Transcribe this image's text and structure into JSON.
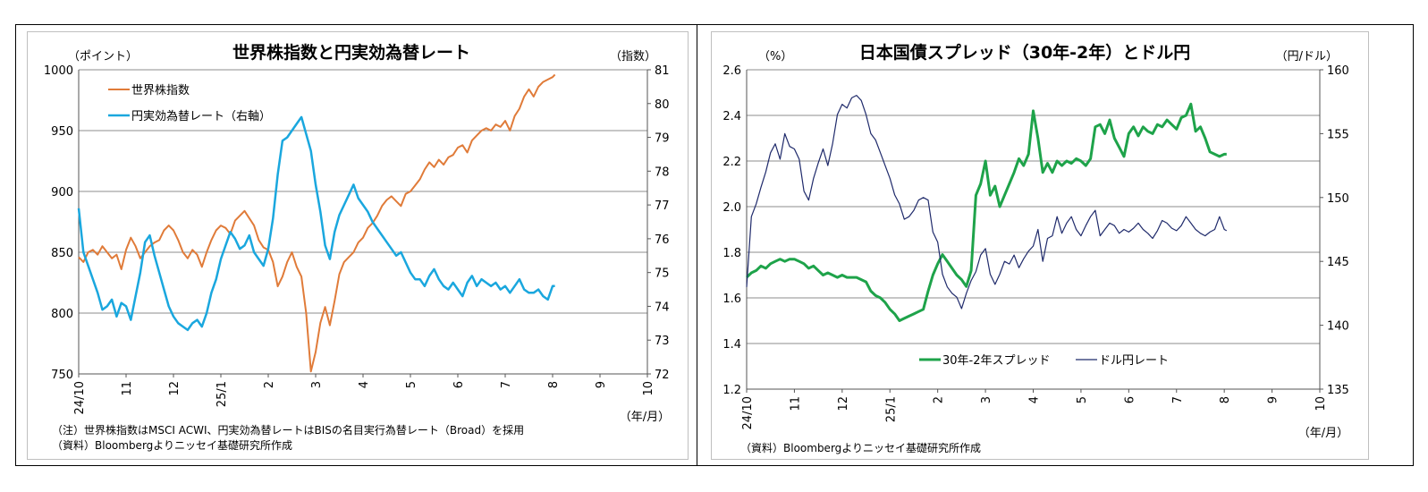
{
  "chart_data": [
    {
      "type": "line",
      "title": "世界株指数と円実効為替レート",
      "left_unit": "（ポイント）",
      "right_unit": "（指数）",
      "x_unit": "（年/月）",
      "x_ticks": [
        "24/10",
        "11",
        "12",
        "25/1",
        "2",
        "3",
        "4",
        "5",
        "6",
        "7",
        "8",
        "9",
        "10"
      ],
      "left_axis": {
        "min": 750,
        "max": 1000,
        "ticks": [
          "750",
          "800",
          "850",
          "900",
          "950",
          "1000"
        ]
      },
      "right_axis": {
        "min": 72,
        "max": 81,
        "ticks": [
          "72",
          "73",
          "74",
          "75",
          "76",
          "77",
          "78",
          "79",
          "80",
          "81"
        ]
      },
      "gridlines": true,
      "legend_position": "top-left",
      "colors": {
        "stock": "#E07B39",
        "yen": "#1AA7DE"
      },
      "series": [
        {
          "name": "世界株指数",
          "axis": "left",
          "x": [
            0,
            0.1,
            0.2,
            0.3,
            0.4,
            0.5,
            0.6,
            0.7,
            0.8,
            0.9,
            1.0,
            1.1,
            1.2,
            1.3,
            1.4,
            1.5,
            1.6,
            1.7,
            1.8,
            1.9,
            2.0,
            2.1,
            2.2,
            2.3,
            2.4,
            2.5,
            2.6,
            2.7,
            2.8,
            2.9,
            3.0,
            3.1,
            3.2,
            3.3,
            3.4,
            3.5,
            3.6,
            3.7,
            3.8,
            3.9,
            4.0,
            4.1,
            4.2,
            4.3,
            4.4,
            4.5,
            4.6,
            4.7,
            4.8,
            4.9,
            5.0,
            5.1,
            5.2,
            5.3,
            5.4,
            5.5,
            5.6,
            5.7,
            5.8,
            5.9,
            6.0,
            6.1,
            6.2,
            6.3,
            6.4,
            6.5,
            6.6,
            6.7,
            6.8,
            6.9,
            7.0,
            7.1,
            7.2,
            7.3,
            7.4,
            7.5,
            7.6,
            7.7,
            7.8,
            7.9,
            8.0,
            8.1,
            8.2,
            8.3,
            8.4,
            8.5,
            8.6,
            8.7,
            8.8,
            8.9,
            9.0,
            9.1,
            9.2,
            9.3,
            9.4,
            9.5,
            9.6,
            9.7,
            9.8,
            9.9,
            10.0,
            10.05
          ],
          "values": [
            846,
            842,
            850,
            852,
            848,
            855,
            850,
            845,
            848,
            836,
            852,
            862,
            855,
            845,
            850,
            855,
            858,
            860,
            868,
            872,
            868,
            860,
            850,
            845,
            852,
            848,
            838,
            850,
            860,
            868,
            872,
            870,
            865,
            876,
            880,
            884,
            878,
            872,
            860,
            854,
            852,
            842,
            822,
            830,
            842,
            850,
            838,
            830,
            800,
            752,
            768,
            792,
            805,
            790,
            810,
            832,
            842,
            846,
            850,
            858,
            862,
            870,
            874,
            880,
            888,
            893,
            896,
            892,
            888,
            898,
            900,
            905,
            910,
            918,
            924,
            920,
            926,
            922,
            928,
            930,
            936,
            938,
            932,
            942,
            946,
            950,
            952,
            950,
            955,
            953,
            958,
            950,
            962,
            968,
            978,
            984,
            978,
            986,
            990,
            992,
            994,
            996
          ]
        },
        {
          "name": "円実効為替レート（右軸）",
          "axis": "right",
          "x": [
            0,
            0.1,
            0.2,
            0.3,
            0.4,
            0.5,
            0.6,
            0.7,
            0.8,
            0.9,
            1.0,
            1.1,
            1.2,
            1.3,
            1.4,
            1.5,
            1.6,
            1.7,
            1.8,
            1.9,
            2.0,
            2.1,
            2.2,
            2.3,
            2.4,
            2.5,
            2.6,
            2.7,
            2.8,
            2.9,
            3.0,
            3.1,
            3.2,
            3.3,
            3.4,
            3.5,
            3.6,
            3.7,
            3.8,
            3.9,
            4.0,
            4.1,
            4.2,
            4.3,
            4.4,
            4.5,
            4.6,
            4.7,
            4.8,
            4.9,
            5.0,
            5.1,
            5.2,
            5.3,
            5.4,
            5.5,
            5.6,
            5.7,
            5.8,
            5.9,
            6.0,
            6.1,
            6.2,
            6.3,
            6.4,
            6.5,
            6.6,
            6.7,
            6.8,
            6.9,
            7.0,
            7.1,
            7.2,
            7.3,
            7.4,
            7.5,
            7.6,
            7.7,
            7.8,
            7.9,
            8.0,
            8.1,
            8.2,
            8.3,
            8.4,
            8.5,
            8.6,
            8.7,
            8.8,
            8.9,
            9.0,
            9.1,
            9.2,
            9.3,
            9.4,
            9.5,
            9.6,
            9.7,
            9.8,
            9.9,
            10.0,
            10.05
          ],
          "values": [
            76.9,
            75.6,
            75.2,
            74.8,
            74.4,
            73.9,
            74.0,
            74.2,
            73.7,
            74.1,
            74.0,
            73.6,
            74.3,
            75.0,
            75.9,
            76.1,
            75.5,
            75.0,
            74.5,
            74.0,
            73.7,
            73.5,
            73.4,
            73.3,
            73.5,
            73.6,
            73.4,
            73.8,
            74.4,
            74.8,
            75.4,
            75.8,
            76.2,
            76.0,
            75.7,
            75.8,
            76.1,
            75.6,
            75.4,
            75.2,
            75.7,
            76.6,
            77.9,
            78.9,
            79.0,
            79.2,
            79.4,
            79.6,
            79.1,
            78.6,
            77.6,
            76.8,
            75.8,
            75.4,
            76.2,
            76.7,
            77.0,
            77.3,
            77.6,
            77.2,
            77.0,
            76.8,
            76.5,
            76.3,
            76.1,
            75.9,
            75.7,
            75.5,
            75.6,
            75.3,
            75.0,
            74.8,
            74.8,
            74.6,
            74.9,
            75.1,
            74.8,
            74.6,
            74.5,
            74.7,
            74.5,
            74.3,
            74.7,
            74.9,
            74.6,
            74.8,
            74.7,
            74.6,
            74.7,
            74.5,
            74.6,
            74.4,
            74.6,
            74.8,
            74.5,
            74.4,
            74.4,
            74.5,
            74.3,
            74.2,
            74.6,
            74.6
          ]
        }
      ],
      "notes": [
        "（注）世界株指数はMSCI ACWI、円実効為替レートはBISの名目実行為替レート（Broad）を採用",
        "（資料）Bloombergよりニッセイ基礎研究所作成"
      ]
    },
    {
      "type": "line",
      "title": "日本国債スプレッド（30年-2年）とドル円",
      "left_unit": "（%）",
      "right_unit": "（円/ドル）",
      "x_unit": "（年/月）",
      "x_ticks": [
        "24/10",
        "11",
        "12",
        "25/1",
        "2",
        "3",
        "4",
        "5",
        "6",
        "7",
        "8",
        "9",
        "10"
      ],
      "left_axis": {
        "min": 1.2,
        "max": 2.6,
        "ticks": [
          "1.2",
          "1.4",
          "1.6",
          "1.8",
          "2.0",
          "2.2",
          "2.4",
          "2.6"
        ]
      },
      "right_axis": {
        "min": 135,
        "max": 160,
        "ticks": [
          "135",
          "140",
          "145",
          "150",
          "155",
          "160"
        ]
      },
      "gridlines": true,
      "legend_position": "bottom-center",
      "colors": {
        "spread": "#1EA34A",
        "usdjpy": "#1F2A6B"
      },
      "series": [
        {
          "name": "30年-2年スプレッド",
          "axis": "left",
          "x": [
            0,
            0.1,
            0.2,
            0.3,
            0.4,
            0.5,
            0.6,
            0.7,
            0.8,
            0.9,
            1.0,
            1.1,
            1.2,
            1.3,
            1.4,
            1.5,
            1.6,
            1.7,
            1.8,
            1.9,
            2.0,
            2.1,
            2.2,
            2.3,
            2.4,
            2.5,
            2.6,
            2.7,
            2.8,
            2.9,
            3.0,
            3.1,
            3.2,
            3.3,
            3.4,
            3.5,
            3.6,
            3.7,
            3.8,
            3.9,
            4.0,
            4.1,
            4.2,
            4.3,
            4.4,
            4.5,
            4.6,
            4.7,
            4.8,
            4.9,
            5.0,
            5.1,
            5.2,
            5.3,
            5.4,
            5.5,
            5.6,
            5.7,
            5.8,
            5.9,
            6.0,
            6.1,
            6.2,
            6.3,
            6.4,
            6.5,
            6.6,
            6.7,
            6.8,
            6.9,
            7.0,
            7.1,
            7.2,
            7.3,
            7.4,
            7.5,
            7.6,
            7.7,
            7.8,
            7.9,
            8.0,
            8.1,
            8.2,
            8.3,
            8.4,
            8.5,
            8.6,
            8.7,
            8.8,
            8.9,
            9.0,
            9.1,
            9.2,
            9.3,
            9.4,
            9.5,
            9.6,
            9.7,
            9.8,
            9.9,
            10.0,
            10.05
          ],
          "values": [
            1.69,
            1.71,
            1.72,
            1.74,
            1.73,
            1.75,
            1.76,
            1.77,
            1.76,
            1.77,
            1.77,
            1.76,
            1.75,
            1.73,
            1.74,
            1.72,
            1.7,
            1.71,
            1.7,
            1.69,
            1.7,
            1.69,
            1.69,
            1.69,
            1.68,
            1.67,
            1.63,
            1.61,
            1.6,
            1.58,
            1.55,
            1.53,
            1.5,
            1.51,
            1.52,
            1.53,
            1.54,
            1.55,
            1.63,
            1.7,
            1.75,
            1.79,
            1.76,
            1.73,
            1.7,
            1.68,
            1.65,
            1.72,
            2.05,
            2.1,
            2.2,
            2.05,
            2.09,
            2.0,
            2.05,
            2.1,
            2.15,
            2.21,
            2.18,
            2.23,
            2.42,
            2.3,
            2.15,
            2.19,
            2.15,
            2.2,
            2.18,
            2.2,
            2.19,
            2.21,
            2.2,
            2.18,
            2.21,
            2.35,
            2.36,
            2.32,
            2.38,
            2.3,
            2.26,
            2.22,
            2.32,
            2.35,
            2.31,
            2.35,
            2.33,
            2.32,
            2.36,
            2.35,
            2.38,
            2.36,
            2.34,
            2.39,
            2.4,
            2.45,
            2.33,
            2.35,
            2.3,
            2.24,
            2.23,
            2.22,
            2.23,
            2.23
          ]
        },
        {
          "name": "ドル円レート",
          "axis": "right",
          "x": [
            0,
            0.1,
            0.2,
            0.3,
            0.4,
            0.5,
            0.6,
            0.7,
            0.8,
            0.9,
            1.0,
            1.1,
            1.2,
            1.3,
            1.4,
            1.5,
            1.6,
            1.7,
            1.8,
            1.9,
            2.0,
            2.1,
            2.2,
            2.3,
            2.4,
            2.5,
            2.6,
            2.7,
            2.8,
            2.9,
            3.0,
            3.1,
            3.2,
            3.3,
            3.4,
            3.5,
            3.6,
            3.7,
            3.8,
            3.9,
            4.0,
            4.1,
            4.2,
            4.3,
            4.4,
            4.5,
            4.6,
            4.7,
            4.8,
            4.9,
            5.0,
            5.1,
            5.2,
            5.3,
            5.4,
            5.5,
            5.6,
            5.7,
            5.8,
            5.9,
            6.0,
            6.1,
            6.2,
            6.3,
            6.4,
            6.5,
            6.6,
            6.7,
            6.8,
            6.9,
            7.0,
            7.1,
            7.2,
            7.3,
            7.4,
            7.5,
            7.6,
            7.7,
            7.8,
            7.9,
            8.0,
            8.1,
            8.2,
            8.3,
            8.4,
            8.5,
            8.6,
            8.7,
            8.8,
            8.9,
            9.0,
            9.1,
            9.2,
            9.3,
            9.4,
            9.5,
            9.6,
            9.7,
            9.8,
            9.9,
            10.0,
            10.05
          ],
          "values": [
            143.0,
            148.5,
            149.5,
            150.8,
            152.0,
            153.5,
            154.2,
            153.0,
            155.0,
            154.0,
            153.8,
            153.0,
            150.5,
            149.8,
            151.5,
            152.7,
            153.8,
            152.5,
            154.2,
            156.5,
            157.3,
            157.0,
            157.8,
            158.0,
            157.6,
            156.5,
            155.0,
            154.5,
            153.5,
            152.5,
            151.5,
            150.2,
            149.5,
            148.3,
            148.5,
            149.0,
            149.8,
            150.0,
            149.8,
            147.3,
            146.5,
            144.0,
            143.0,
            142.5,
            142.2,
            141.3,
            142.5,
            143.5,
            144.2,
            145.5,
            146.0,
            144.0,
            143.2,
            144.0,
            145.0,
            144.8,
            145.5,
            144.5,
            145.2,
            145.8,
            146.2,
            147.5,
            145.0,
            146.8,
            147.0,
            148.5,
            147.2,
            148.0,
            148.5,
            147.5,
            147.0,
            147.8,
            148.5,
            149.0,
            147.0,
            147.5,
            148.0,
            147.8,
            147.2,
            147.5,
            147.3,
            147.6,
            148.0,
            147.5,
            147.2,
            146.8,
            147.4,
            148.2,
            148.0,
            147.6,
            147.4,
            147.8,
            148.5,
            148.0,
            147.5,
            147.2,
            147.0,
            147.3,
            147.5,
            148.5,
            147.5,
            147.4
          ]
        }
      ],
      "notes": [
        "（資料）Bloombergよりニッセイ基礎研究所作成"
      ]
    }
  ]
}
